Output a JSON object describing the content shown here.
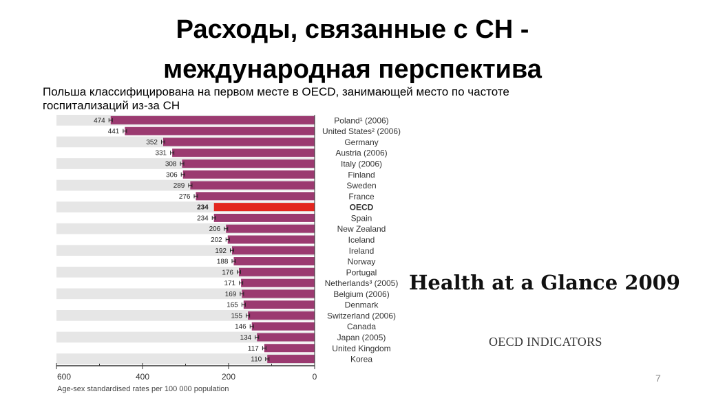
{
  "slide": {
    "title_line1": "Расходы, связанные с СН -",
    "title_line2": "международная перспектива",
    "subtitle_line1": "Польша классифицирована на первом месте в OECD, занимающей место по частоте",
    "subtitle_line2": "госпитализаций из-за СН",
    "brand": "Health at a Glance 2009",
    "brand_sub": "OECD INDICATORS",
    "page_number": "7"
  },
  "chart_data": {
    "type": "bar",
    "orientation": "horizontal",
    "direction": "right-to-left",
    "categories": [
      "Poland¹ (2006)",
      "United States² (2006)",
      "Germany",
      "Austria (2006)",
      "Italy (2006)",
      "Finland",
      "Sweden",
      "France",
      "OECD",
      "Spain",
      "New Zealand",
      "Iceland",
      "Ireland",
      "Norway",
      "Portugal",
      "Netherlands³ (2005)",
      "Belgium (2006)",
      "Denmark",
      "Switzerland (2006)",
      "Canada",
      "Japan (2005)",
      "United Kingdom",
      "Korea"
    ],
    "values": [
      474,
      441,
      352,
      331,
      308,
      306,
      289,
      276,
      234,
      234,
      206,
      202,
      192,
      188,
      176,
      171,
      169,
      165,
      155,
      146,
      134,
      117,
      110
    ],
    "highlight": "OECD",
    "xlim": [
      600,
      0
    ],
    "xticks": [
      "600",
      "400",
      "200",
      "0"
    ],
    "xlabel": "Age-sex standardised rates per 100 000 population",
    "colors": {
      "bar": "#9b3a70",
      "highlight": "#e3261f",
      "row_a": "#e6e6e6",
      "row_b": "#ffffff"
    }
  }
}
